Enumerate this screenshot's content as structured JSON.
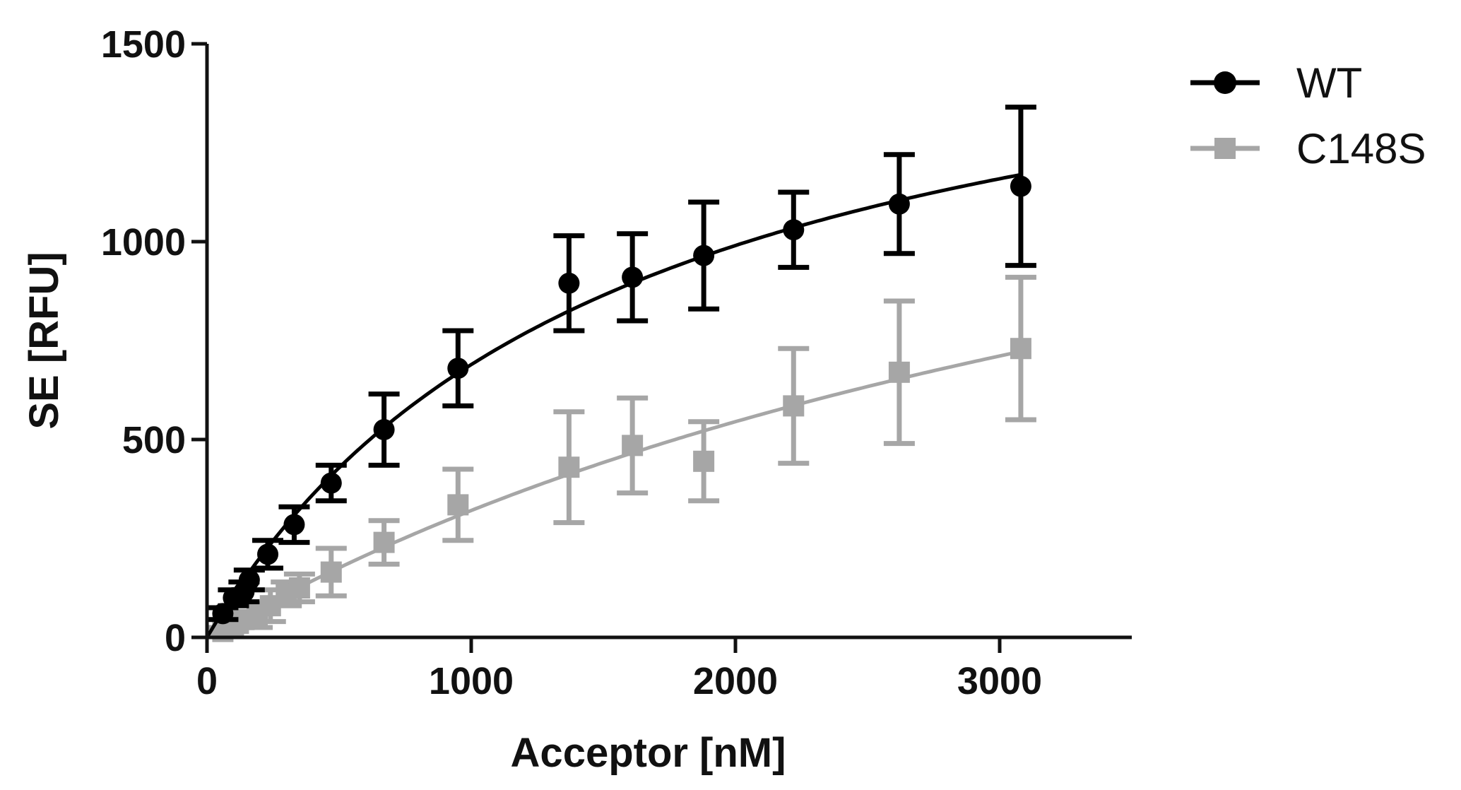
{
  "chart_data": {
    "type": "scatter",
    "xlabel": "Acceptor [nM]",
    "ylabel": "SE [RFU]",
    "xlim": [
      0,
      3500
    ],
    "ylim": [
      0,
      1500
    ],
    "xticks": [
      0,
      1000,
      2000,
      3000
    ],
    "yticks": [
      0,
      500,
      1000,
      1500
    ],
    "grid": false,
    "legend": "top-right",
    "series": [
      {
        "name": "WT",
        "color": "#000000",
        "marker": "circle",
        "fit": "saturation curve",
        "points": [
          {
            "x": 60,
            "y": 60,
            "err": 15
          },
          {
            "x": 100,
            "y": 100,
            "err": 20
          },
          {
            "x": 140,
            "y": 115,
            "err": 25
          },
          {
            "x": 160,
            "y": 145,
            "err": 25
          },
          {
            "x": 230,
            "y": 210,
            "err": 35
          },
          {
            "x": 330,
            "y": 285,
            "err": 45
          },
          {
            "x": 470,
            "y": 390,
            "err": 45
          },
          {
            "x": 670,
            "y": 525,
            "err": 90
          },
          {
            "x": 950,
            "y": 680,
            "err": 95
          },
          {
            "x": 1370,
            "y": 895,
            "err": 120
          },
          {
            "x": 1610,
            "y": 910,
            "err": 110
          },
          {
            "x": 1880,
            "y": 965,
            "err": 135
          },
          {
            "x": 2220,
            "y": 1030,
            "err": 95
          },
          {
            "x": 2620,
            "y": 1095,
            "err": 125
          },
          {
            "x": 3080,
            "y": 1140,
            "err": 200
          }
        ]
      },
      {
        "name": "C148S",
        "color": "#a6a6a6",
        "marker": "square",
        "fit": "saturation curve",
        "points": [
          {
            "x": 60,
            "y": 15,
            "err": 10
          },
          {
            "x": 100,
            "y": 30,
            "err": 15
          },
          {
            "x": 140,
            "y": 45,
            "err": 20
          },
          {
            "x": 190,
            "y": 55,
            "err": 30
          },
          {
            "x": 240,
            "y": 80,
            "err": 40
          },
          {
            "x": 300,
            "y": 110,
            "err": 30
          },
          {
            "x": 350,
            "y": 125,
            "err": 35
          },
          {
            "x": 470,
            "y": 165,
            "err": 60
          },
          {
            "x": 670,
            "y": 240,
            "err": 55
          },
          {
            "x": 950,
            "y": 335,
            "err": 90
          },
          {
            "x": 1370,
            "y": 430,
            "err": 140
          },
          {
            "x": 1610,
            "y": 485,
            "err": 120
          },
          {
            "x": 1880,
            "y": 445,
            "err": 100
          },
          {
            "x": 2220,
            "y": 585,
            "err": 145
          },
          {
            "x": 2620,
            "y": 670,
            "err": 180
          },
          {
            "x": 3080,
            "y": 730,
            "err": 180
          }
        ]
      }
    ]
  }
}
